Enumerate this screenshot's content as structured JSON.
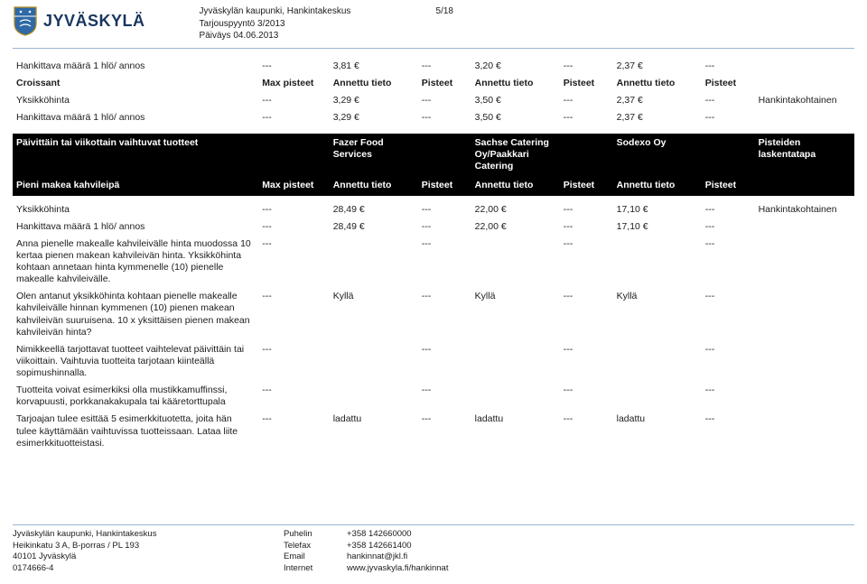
{
  "header": {
    "org_name": "JYVÄSKYLÄ",
    "line1_left": "Jyväskylän kaupunki, Hankintakeskus",
    "line1_right": "5/18",
    "line2": "Tarjouspyyntö 3/2013",
    "line3": "Päiväys 04.06.2013"
  },
  "table1": {
    "rows": [
      {
        "label": "Hankittava määrä 1 hlö/ annos",
        "max": "---",
        "v1": "3,81 €",
        "p1": "---",
        "v2": "3,20 €",
        "p2": "---",
        "v3": "2,37 €",
        "p3": "---",
        "side": ""
      },
      {
        "label": "Croissant",
        "max": "Max pisteet",
        "v1": "Annettu tieto",
        "p1": "Pisteet",
        "v2": "Annettu tieto",
        "p2": "Pisteet",
        "v3": "Annettu tieto",
        "p3": "Pisteet",
        "side": "",
        "bold": true
      },
      {
        "label": "Yksikköhinta",
        "max": "---",
        "v1": "3,29 €",
        "p1": "---",
        "v2": "3,50 €",
        "p2": "---",
        "v3": "2,37 €",
        "p3": "---",
        "side": "Hankintakohtainen"
      },
      {
        "label": "Hankittava määrä 1 hlö/ annos",
        "max": "---",
        "v1": "3,29 €",
        "p1": "---",
        "v2": "3,50 €",
        "p2": "---",
        "v3": "2,37 €",
        "p3": "---",
        "side": ""
      }
    ]
  },
  "section": {
    "col0": "Päivittäin tai viikottain vaihtuvat tuotteet",
    "col1": "",
    "col2": "Fazer Food Services",
    "col3": "",
    "col4": "Sachse Catering Oy/Paakkari Catering",
    "col5": "",
    "col6": "Sodexo Oy",
    "col7": "",
    "col8": "Pisteiden laskentatapa",
    "sub": {
      "label": "Pieni makea kahvileipä",
      "max": "Max pisteet",
      "p_label": "Pisteet",
      "v_label": "Annettu tieto"
    }
  },
  "table2": {
    "rows": [
      {
        "label": "Yksikköhinta",
        "max": "---",
        "v1": "28,49 €",
        "p1": "---",
        "v2": "22,00 €",
        "p2": "---",
        "v3": "17,10 €",
        "p3": "---",
        "side": "Hankintakohtainen"
      },
      {
        "label": "Hankittava määrä 1 hlö/ annos",
        "max": "---",
        "v1": "28,49 €",
        "p1": "---",
        "v2": "22,00 €",
        "p2": "---",
        "v3": "17,10 €",
        "p3": "---",
        "side": ""
      },
      {
        "label": "Anna pienelle makealle kahvileivälle hinta muodossa 10 kertaa pienen makean kahvileivän hinta. Yksikköhinta kohtaan annetaan hinta kymmenelle (10) pienelle makealle kahvileivälle.",
        "max": "---",
        "v1": "",
        "p1": "---",
        "v2": "",
        "p2": "---",
        "v3": "",
        "p3": "---",
        "side": ""
      },
      {
        "label": "Olen antanut yksikköhinta kohtaan pienelle makealle kahvileivälle hinnan kymmenen (10) pienen makean kahvileivän suuruisena. 10 x yksittäisen pienen makean kahvileivän hinta?",
        "max": "---",
        "v1": "Kyllä",
        "p1": "---",
        "v2": "Kyllä",
        "p2": "---",
        "v3": "Kyllä",
        "p3": "---",
        "side": ""
      },
      {
        "label": "Nimikkeellä tarjottavat tuotteet vaihtelevat päivittäin tai viikoittain. Vaihtuvia tuotteita tarjotaan kiinteällä sopimushinnalla.",
        "max": "---",
        "v1": "",
        "p1": "---",
        "v2": "",
        "p2": "---",
        "v3": "",
        "p3": "---",
        "side": ""
      },
      {
        "label": "Tuotteita voivat esimerkiksi olla mustikkamuffinssi, korvapuusti, porkkanakakupala tai kääretorttupala",
        "max": "---",
        "v1": "",
        "p1": "---",
        "v2": "",
        "p2": "---",
        "v3": "",
        "p3": "---",
        "side": ""
      },
      {
        "label": "Tarjoajan tulee esittää 5 esimerkkituotetta, joita hän tulee käyttämään vaihtuvissa tuotteissaan. Lataa liite esimerkkituotteistasi.",
        "max": "---",
        "v1": "ladattu",
        "p1": "---",
        "v2": "ladattu",
        "p2": "---",
        "v3": "ladattu",
        "p3": "---",
        "side": ""
      }
    ]
  },
  "footer": {
    "col1": {
      "l1": "Jyväskylän kaupunki, Hankintakeskus",
      "l2": "Heikinkatu 3 A, B-porras / PL 193",
      "l3": "40101 Jyväskylä",
      "l4": "0174666-4"
    },
    "col2": {
      "l1": "Puhelin",
      "l2": "Telefax",
      "l3": "Email",
      "l4": "Internet"
    },
    "col3": {
      "l1": "+358 142660000",
      "l2": "+358 142661400",
      "l3": "hankinnat@jkl.fi",
      "l4": "www.jyvaskyla.fi/hankinnat"
    }
  },
  "colors": {
    "brand": "#17365f",
    "rule": "#99b4d1",
    "text": "#1c1c1c",
    "section_bg": "#000000",
    "section_fg": "#ffffff"
  }
}
